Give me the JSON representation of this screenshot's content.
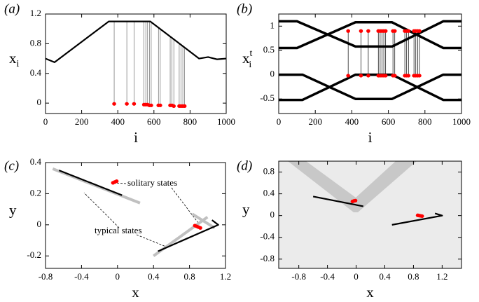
{
  "chart_data": [
    {
      "type": "line",
      "panel": "(a)",
      "xlabel": "i",
      "ylabel": "x",
      "ylabel_sub": "i",
      "xlim": [
        0,
        1000
      ],
      "xticks": [
        0,
        200,
        400,
        600,
        800,
        1000
      ],
      "ylim": [
        -0.14,
        1.2
      ],
      "yticks": [
        0,
        0.4,
        0.8,
        1.2
      ],
      "series": [
        {
          "mode": "line",
          "color": "#000000",
          "x": [
            0,
            50,
            350,
            580,
            850,
            900,
            950,
            1000
          ],
          "values": [
            0.6,
            0.55,
            1.1,
            1.1,
            0.6,
            0.62,
            0.59,
            0.6
          ]
        },
        {
          "mode": "points",
          "color": "#ff0000",
          "x": [
            380,
            450,
            490,
            545,
            555,
            565,
            575,
            585,
            625,
            635,
            690,
            700,
            710,
            740,
            750,
            760,
            770
          ],
          "values": [
            -0.01,
            -0.01,
            -0.01,
            -0.02,
            -0.02,
            -0.02,
            -0.03,
            -0.03,
            -0.03,
            -0.03,
            -0.03,
            -0.03,
            -0.04,
            -0.04,
            -0.04,
            -0.04,
            -0.04
          ]
        }
      ]
    },
    {
      "type": "line",
      "panel": "(b)",
      "xlabel": "i",
      "ylabel": "x",
      "ylabel_sub": "i",
      "ylabel_sup": "t",
      "xlim": [
        0,
        1000
      ],
      "xticks": [
        0,
        200,
        400,
        600,
        800,
        1000
      ],
      "ylim": [
        -0.8,
        1.25
      ],
      "yticks": [
        -0.5,
        0,
        0.5,
        1
      ],
      "series": [
        {
          "mode": "line",
          "color": "#000000",
          "x": [
            0,
            100,
            420,
            620,
            900,
            1000
          ],
          "values": [
            1.1,
            1.1,
            0.58,
            0.58,
            1.1,
            1.1
          ]
        },
        {
          "mode": "line",
          "color": "#000000",
          "x": [
            0,
            100,
            420,
            620,
            900,
            1000
          ],
          "values": [
            0.55,
            0.55,
            1.08,
            1.08,
            0.55,
            0.55
          ]
        },
        {
          "mode": "line",
          "color": "#000000",
          "x": [
            0,
            130,
            420,
            620,
            900,
            1000
          ],
          "values": [
            0,
            0,
            -0.5,
            -0.5,
            0,
            0
          ]
        },
        {
          "mode": "line",
          "color": "#000000",
          "x": [
            0,
            130,
            420,
            620,
            900,
            1000
          ],
          "values": [
            -0.52,
            -0.52,
            0,
            0,
            -0.52,
            -0.52
          ]
        },
        {
          "mode": "points",
          "color": "#ff0000",
          "x": [
            380,
            450,
            490,
            545,
            555,
            565,
            575,
            585,
            625,
            635,
            690,
            700,
            710,
            740,
            750,
            760,
            770
          ],
          "values": [
            0.9,
            0.9,
            0.9,
            0.9,
            0.9,
            0.9,
            0.9,
            0.9,
            0.9,
            0.9,
            0.9,
            0.9,
            0.9,
            0.9,
            0.9,
            0.9,
            0.9
          ]
        },
        {
          "mode": "points",
          "color": "#ff0000",
          "x": [
            380,
            450,
            490,
            545,
            555,
            565,
            575,
            585,
            625,
            635,
            690,
            700,
            710,
            740,
            750,
            760,
            770
          ],
          "values": [
            -0.02,
            -0.02,
            -0.02,
            -0.02,
            -0.02,
            -0.02,
            -0.02,
            -0.02,
            -0.02,
            -0.02,
            -0.02,
            -0.02,
            -0.02,
            -0.02,
            -0.02,
            -0.02,
            -0.02
          ]
        }
      ]
    },
    {
      "type": "line",
      "panel": "(c)",
      "xlabel": "x",
      "ylabel": "y",
      "xlim": [
        -0.8,
        1.2
      ],
      "xticks": [
        -0.8,
        -0.4,
        0,
        0.4,
        0.8,
        1.2
      ],
      "ylim": [
        -0.28,
        0.4
      ],
      "yticks": [
        -0.2,
        0,
        0.2,
        0.4
      ],
      "annotations": [
        "solitary states",
        "typical states"
      ],
      "series": [
        {
          "mode": "wide",
          "color": "#c0c0c0",
          "x": [
            -0.72,
            0.25
          ],
          "values": [
            0.36,
            0.14
          ]
        },
        {
          "mode": "wide",
          "color": "#c0c0c0",
          "x": [
            0.4,
            1.0
          ],
          "values": [
            -0.2,
            0.05
          ]
        },
        {
          "mode": "wide",
          "color": "#c0c0c0",
          "x": [
            0.83,
            1.08
          ],
          "values": [
            0.07,
            -0.02
          ]
        },
        {
          "mode": "line",
          "color": "#000000",
          "x": [
            -0.65,
            0.05
          ],
          "values": [
            0.35,
            0.19
          ]
        },
        {
          "mode": "line",
          "color": "#000000",
          "x": [
            0.45,
            1.12,
            1.05
          ],
          "values": [
            -0.17,
            0,
            0.03
          ]
        },
        {
          "mode": "points",
          "color": "#ff0000",
          "x": [
            -0.05,
            -0.03,
            -0.01,
            0.86,
            0.88,
            0.9,
            0.92
          ],
          "values": [
            0.27,
            0.275,
            0.28,
            -0.005,
            -0.01,
            -0.015,
            -0.02
          ]
        }
      ]
    },
    {
      "type": "line",
      "panel": "(d)",
      "xlabel": "x",
      "ylabel": "y",
      "xlim": [
        -1.08,
        1.47
      ],
      "xticks": [
        -0.8,
        -0.4,
        0,
        0.4,
        0.8,
        1.2
      ],
      "ylim": [
        -0.97,
        1.0
      ],
      "yticks": [
        -0.8,
        -0.4,
        0,
        0.4,
        0.8
      ],
      "series": [
        {
          "mode": "line",
          "color": "#000000",
          "x": [
            -0.6,
            0.1
          ],
          "values": [
            0.35,
            0.17
          ]
        },
        {
          "mode": "line",
          "color": "#000000",
          "x": [
            0.5,
            1.2,
            1.1
          ],
          "values": [
            -0.17,
            0,
            0.04
          ]
        },
        {
          "mode": "points",
          "color": "#ff0000",
          "x": [
            -0.05,
            -0.03,
            -0.01,
            0.86,
            0.88,
            0.9,
            0.92
          ],
          "values": [
            0.26,
            0.27,
            0.275,
            0.005,
            0,
            -0.005,
            -0.01
          ]
        }
      ]
    }
  ]
}
